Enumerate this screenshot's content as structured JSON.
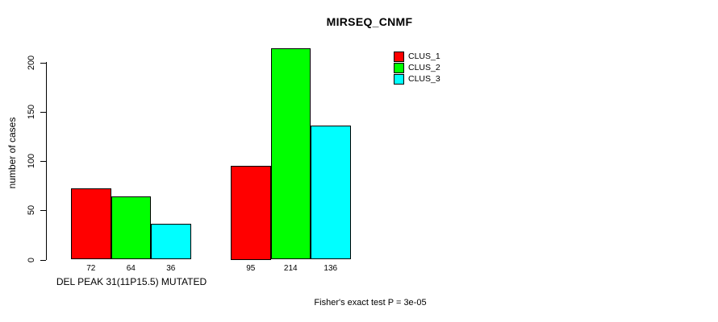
{
  "chart_data": {
    "type": "bar",
    "title": "MIRSEQ_CNMF",
    "ylabel": "number of cases",
    "xlabel": "DEL PEAK 31(11P15.5) MUTATED",
    "annotation": "Fisher's exact test P = 3e-05",
    "grid": false,
    "legend_position": "top-right",
    "ylim": [
      0,
      220
    ],
    "yticks": [
      0,
      50,
      100,
      150,
      200
    ],
    "groups": [
      {
        "bar_labels": [
          "72",
          "64",
          "36"
        ]
      },
      {
        "bar_labels": [
          "95",
          "214",
          "136"
        ]
      }
    ],
    "series": [
      {
        "name": "CLUS_1",
        "color": "#ff0000",
        "values": [
          72,
          95
        ]
      },
      {
        "name": "CLUS_2",
        "color": "#00ff00",
        "values": [
          64,
          214
        ]
      },
      {
        "name": "CLUS_3",
        "color": "#00ffff",
        "values": [
          36,
          136
        ]
      }
    ],
    "bar_edge_color": "#000000"
  }
}
